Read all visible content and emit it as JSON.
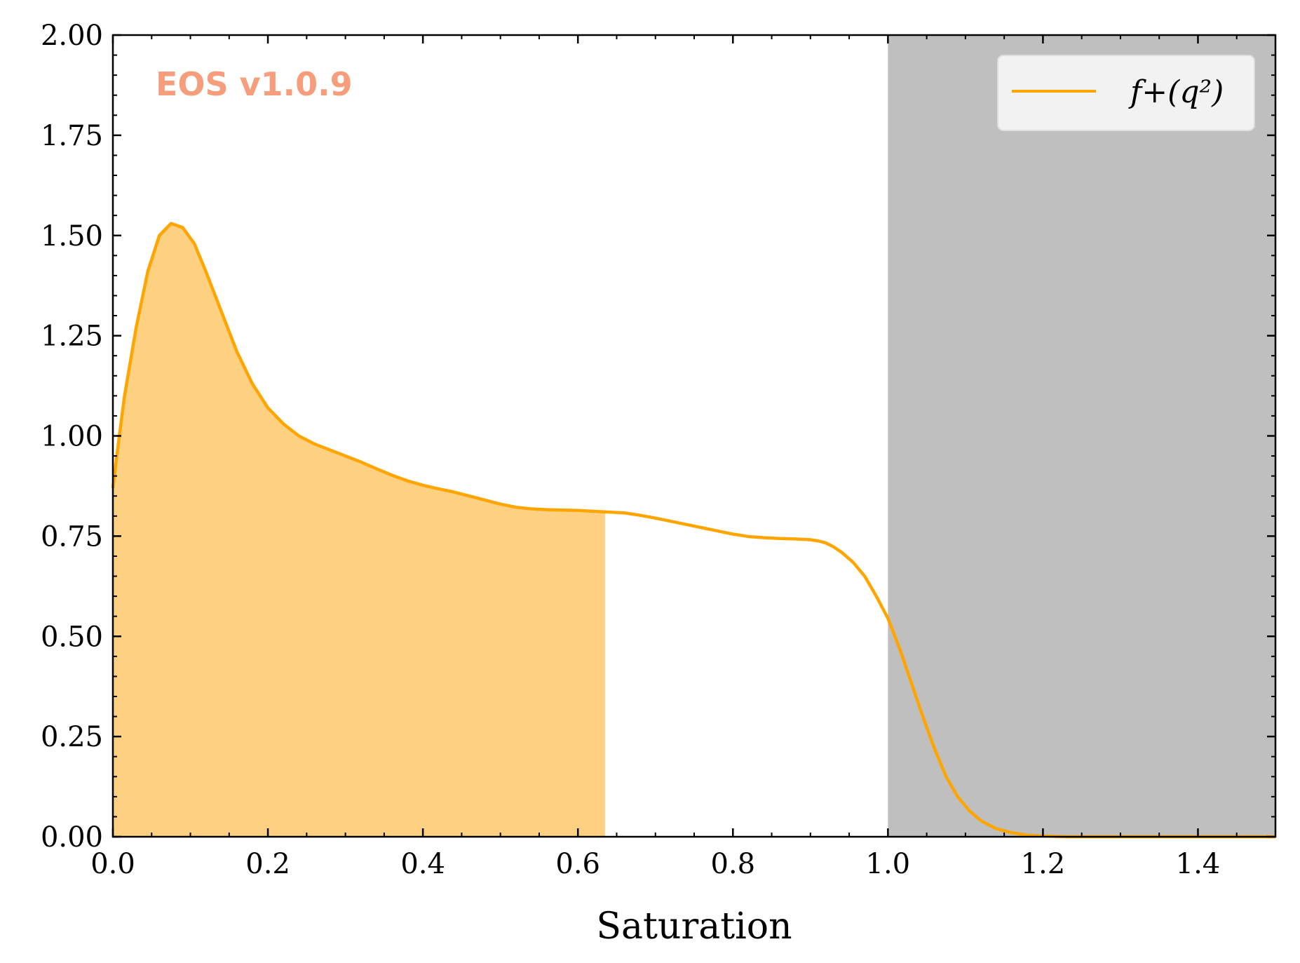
{
  "chart_data": {
    "type": "line",
    "xlabel": "Saturation",
    "ylabel": "",
    "xlim": [
      0.0,
      1.5
    ],
    "ylim": [
      0.0,
      2.0
    ],
    "x_ticks": [
      "0.0",
      "0.2",
      "0.4",
      "0.6",
      "0.8",
      "1.0",
      "1.2",
      "1.4"
    ],
    "x_tick_values": [
      0.0,
      0.2,
      0.4,
      0.6,
      0.8,
      1.0,
      1.2,
      1.4
    ],
    "y_ticks": [
      "0.00",
      "0.25",
      "0.50",
      "0.75",
      "1.00",
      "1.25",
      "1.50",
      "1.75",
      "2.00"
    ],
    "y_tick_values": [
      0.0,
      0.25,
      0.5,
      0.75,
      1.0,
      1.25,
      1.5,
      1.75,
      2.0
    ],
    "watermark": "EOS v1.0.9",
    "legend_placement": "top-right",
    "grid": false,
    "series": [
      {
        "name": "f+(q²)",
        "color": "#ffa500",
        "x": [
          0.0,
          0.005,
          0.015,
          0.03,
          0.045,
          0.06,
          0.075,
          0.09,
          0.105,
          0.12,
          0.14,
          0.16,
          0.18,
          0.2,
          0.22,
          0.24,
          0.26,
          0.28,
          0.3,
          0.32,
          0.34,
          0.36,
          0.38,
          0.4,
          0.42,
          0.44,
          0.46,
          0.48,
          0.5,
          0.52,
          0.54,
          0.56,
          0.58,
          0.6,
          0.62,
          0.64,
          0.66,
          0.68,
          0.7,
          0.72,
          0.74,
          0.76,
          0.78,
          0.8,
          0.82,
          0.84,
          0.86,
          0.88,
          0.9,
          0.91,
          0.92,
          0.93,
          0.94,
          0.955,
          0.97,
          0.985,
          1.0,
          1.015,
          1.03,
          1.045,
          1.06,
          1.075,
          1.09,
          1.105,
          1.12,
          1.14,
          1.16,
          1.18,
          1.2,
          1.23,
          1.26,
          1.3,
          1.35,
          1.4,
          1.45,
          1.5
        ],
        "y": [
          0.87,
          0.95,
          1.1,
          1.27,
          1.41,
          1.5,
          1.53,
          1.52,
          1.48,
          1.41,
          1.31,
          1.21,
          1.13,
          1.07,
          1.03,
          1.0,
          0.98,
          0.965,
          0.95,
          0.935,
          0.918,
          0.902,
          0.888,
          0.877,
          0.868,
          0.86,
          0.85,
          0.84,
          0.83,
          0.822,
          0.818,
          0.816,
          0.815,
          0.814,
          0.812,
          0.81,
          0.808,
          0.802,
          0.795,
          0.787,
          0.779,
          0.771,
          0.763,
          0.755,
          0.749,
          0.746,
          0.744,
          0.743,
          0.741,
          0.738,
          0.733,
          0.723,
          0.71,
          0.685,
          0.65,
          0.6,
          0.545,
          0.47,
          0.385,
          0.3,
          0.22,
          0.15,
          0.1,
          0.065,
          0.04,
          0.02,
          0.01,
          0.004,
          0.002,
          0.0,
          0.0,
          0.0,
          0.0,
          0.0,
          0.0,
          0.0
        ]
      }
    ],
    "shaded_regions": [
      {
        "type": "under-curve",
        "x_from": 0.0,
        "x_to": 0.635,
        "color": "#fed081"
      },
      {
        "type": "band",
        "x_from": 1.0,
        "x_to": 1.5,
        "color": "#bfbfbf"
      }
    ]
  }
}
